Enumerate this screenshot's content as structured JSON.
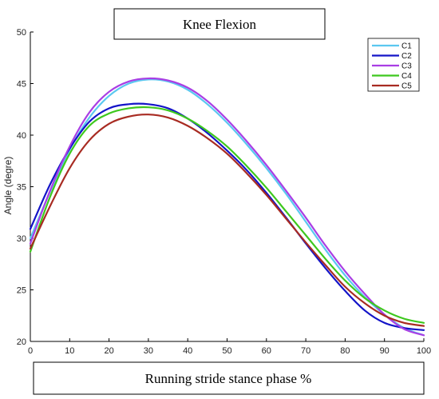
{
  "chart_data": {
    "type": "line",
    "title": "Knee Flexion",
    "xlabel": "Running stride stance phase %",
    "ylabel": "Angle (degre)",
    "xlim": [
      0,
      100
    ],
    "ylim": [
      20,
      50
    ],
    "xticks": [
      0,
      10,
      20,
      30,
      40,
      50,
      60,
      70,
      80,
      90,
      100
    ],
    "yticks": [
      20,
      25,
      30,
      35,
      40,
      45,
      50
    ],
    "x": [
      0,
      5,
      10,
      15,
      20,
      25,
      30,
      35,
      40,
      45,
      50,
      55,
      60,
      65,
      70,
      75,
      80,
      85,
      90,
      95,
      100
    ],
    "legend_position": "top-right",
    "grid": false,
    "series": [
      {
        "name": "C1",
        "color": "#5bc8f0",
        "values": [
          30.0,
          34.5,
          38.6,
          41.7,
          43.8,
          45.0,
          45.4,
          45.2,
          44.4,
          43.0,
          41.2,
          39.1,
          36.8,
          34.3,
          31.6,
          28.9,
          26.4,
          24.3,
          22.6,
          21.3,
          20.6
        ]
      },
      {
        "name": "C2",
        "color": "#1414c8",
        "values": [
          30.9,
          35.2,
          38.7,
          41.3,
          42.6,
          43.0,
          43.0,
          42.6,
          41.6,
          40.2,
          38.5,
          36.6,
          34.4,
          32.0,
          29.5,
          27.1,
          24.9,
          23.0,
          21.8,
          21.3,
          21.1
        ]
      },
      {
        "name": "C3",
        "color": "#a93ee4",
        "values": [
          29.5,
          34.6,
          38.9,
          42.2,
          44.2,
          45.2,
          45.5,
          45.3,
          44.6,
          43.3,
          41.5,
          39.4,
          37.1,
          34.6,
          32.0,
          29.3,
          26.8,
          24.6,
          22.6,
          21.2,
          20.6
        ]
      },
      {
        "name": "C4",
        "color": "#3ec81e",
        "values": [
          28.7,
          34.0,
          38.2,
          40.9,
          42.1,
          42.6,
          42.7,
          42.4,
          41.6,
          40.4,
          38.9,
          37.0,
          34.9,
          32.6,
          30.3,
          28.0,
          25.9,
          24.2,
          23.0,
          22.2,
          21.8
        ]
      },
      {
        "name": "C5",
        "color": "#a82b22",
        "values": [
          29.0,
          33.1,
          36.8,
          39.5,
          41.1,
          41.8,
          42.0,
          41.7,
          40.9,
          39.7,
          38.2,
          36.3,
          34.2,
          31.9,
          29.6,
          27.4,
          25.3,
          23.7,
          22.5,
          21.8,
          21.5
        ]
      }
    ]
  }
}
